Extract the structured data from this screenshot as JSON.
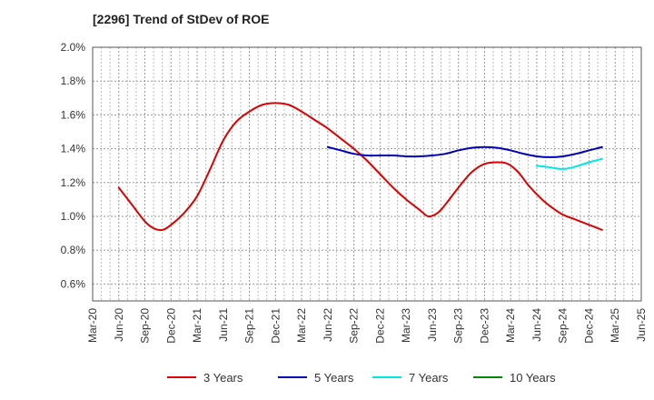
{
  "chart_data": {
    "type": "line",
    "title": "[2296]  Trend of StDev of ROE",
    "xlabel": "",
    "ylabel": "",
    "x_ticks": [
      "Mar-20",
      "Jun-20",
      "Sep-20",
      "Dec-20",
      "Mar-21",
      "Jun-21",
      "Sep-21",
      "Dec-21",
      "Mar-22",
      "Jun-22",
      "Sep-22",
      "Dec-22",
      "Mar-23",
      "Jun-23",
      "Sep-23",
      "Dec-23",
      "Mar-24",
      "Jun-24",
      "Sep-24",
      "Dec-24",
      "Mar-25",
      "Jun-25"
    ],
    "y_ticks": [
      "0.6%",
      "0.8%",
      "1.0%",
      "1.2%",
      "1.4%",
      "1.6%",
      "1.8%",
      "2.0%"
    ],
    "ylim": [
      0.5,
      2.0
    ],
    "grid": true,
    "legend_position": "bottom",
    "series": [
      {
        "name": "3 Years",
        "color": "#dd0000",
        "points": [
          [
            1,
            1.17
          ],
          [
            1.5,
            1.07
          ],
          [
            2,
            0.97
          ],
          [
            2.33,
            0.93
          ],
          [
            2.67,
            0.92
          ],
          [
            3,
            0.95
          ],
          [
            3.5,
            1.02
          ],
          [
            4,
            1.12
          ],
          [
            4.5,
            1.28
          ],
          [
            5,
            1.45
          ],
          [
            5.5,
            1.56
          ],
          [
            6,
            1.62
          ],
          [
            6.5,
            1.66
          ],
          [
            7,
            1.67
          ],
          [
            7.5,
            1.66
          ],
          [
            8,
            1.62
          ],
          [
            8.5,
            1.57
          ],
          [
            9,
            1.52
          ],
          [
            9.5,
            1.46
          ],
          [
            10,
            1.4
          ],
          [
            10.5,
            1.33
          ],
          [
            11,
            1.25
          ],
          [
            11.5,
            1.17
          ],
          [
            12,
            1.1
          ],
          [
            12.5,
            1.04
          ],
          [
            12.85,
            1.0
          ],
          [
            13.2,
            1.02
          ],
          [
            13.5,
            1.07
          ],
          [
            14,
            1.17
          ],
          [
            14.5,
            1.26
          ],
          [
            15,
            1.31
          ],
          [
            15.5,
            1.32
          ],
          [
            15.9,
            1.31
          ],
          [
            16.3,
            1.26
          ],
          [
            16.7,
            1.18
          ],
          [
            17.2,
            1.1
          ],
          [
            17.6,
            1.05
          ],
          [
            18,
            1.01
          ],
          [
            18.5,
            0.98
          ],
          [
            19,
            0.95
          ],
          [
            19.5,
            0.92
          ]
        ]
      },
      {
        "name": "5 Years",
        "color": "#0000bb",
        "points": [
          [
            9,
            1.41
          ],
          [
            9.5,
            1.39
          ],
          [
            10,
            1.37
          ],
          [
            10.5,
            1.36
          ],
          [
            11,
            1.36
          ],
          [
            11.5,
            1.36
          ],
          [
            12,
            1.355
          ],
          [
            12.5,
            1.355
          ],
          [
            13,
            1.36
          ],
          [
            13.5,
            1.37
          ],
          [
            14,
            1.39
          ],
          [
            14.5,
            1.405
          ],
          [
            15,
            1.41
          ],
          [
            15.5,
            1.405
          ],
          [
            16,
            1.39
          ],
          [
            16.5,
            1.37
          ],
          [
            17,
            1.355
          ],
          [
            17.5,
            1.35
          ],
          [
            18,
            1.355
          ],
          [
            18.5,
            1.37
          ],
          [
            19,
            1.39
          ],
          [
            19.5,
            1.41
          ]
        ]
      },
      {
        "name": "7 Years",
        "color": "#00e5e5",
        "points": [
          [
            17,
            1.3
          ],
          [
            17.5,
            1.29
          ],
          [
            18,
            1.28
          ],
          [
            18.5,
            1.295
          ],
          [
            19,
            1.32
          ],
          [
            19.5,
            1.34
          ]
        ]
      },
      {
        "name": "10 Years",
        "color": "#008800",
        "points": []
      }
    ]
  }
}
